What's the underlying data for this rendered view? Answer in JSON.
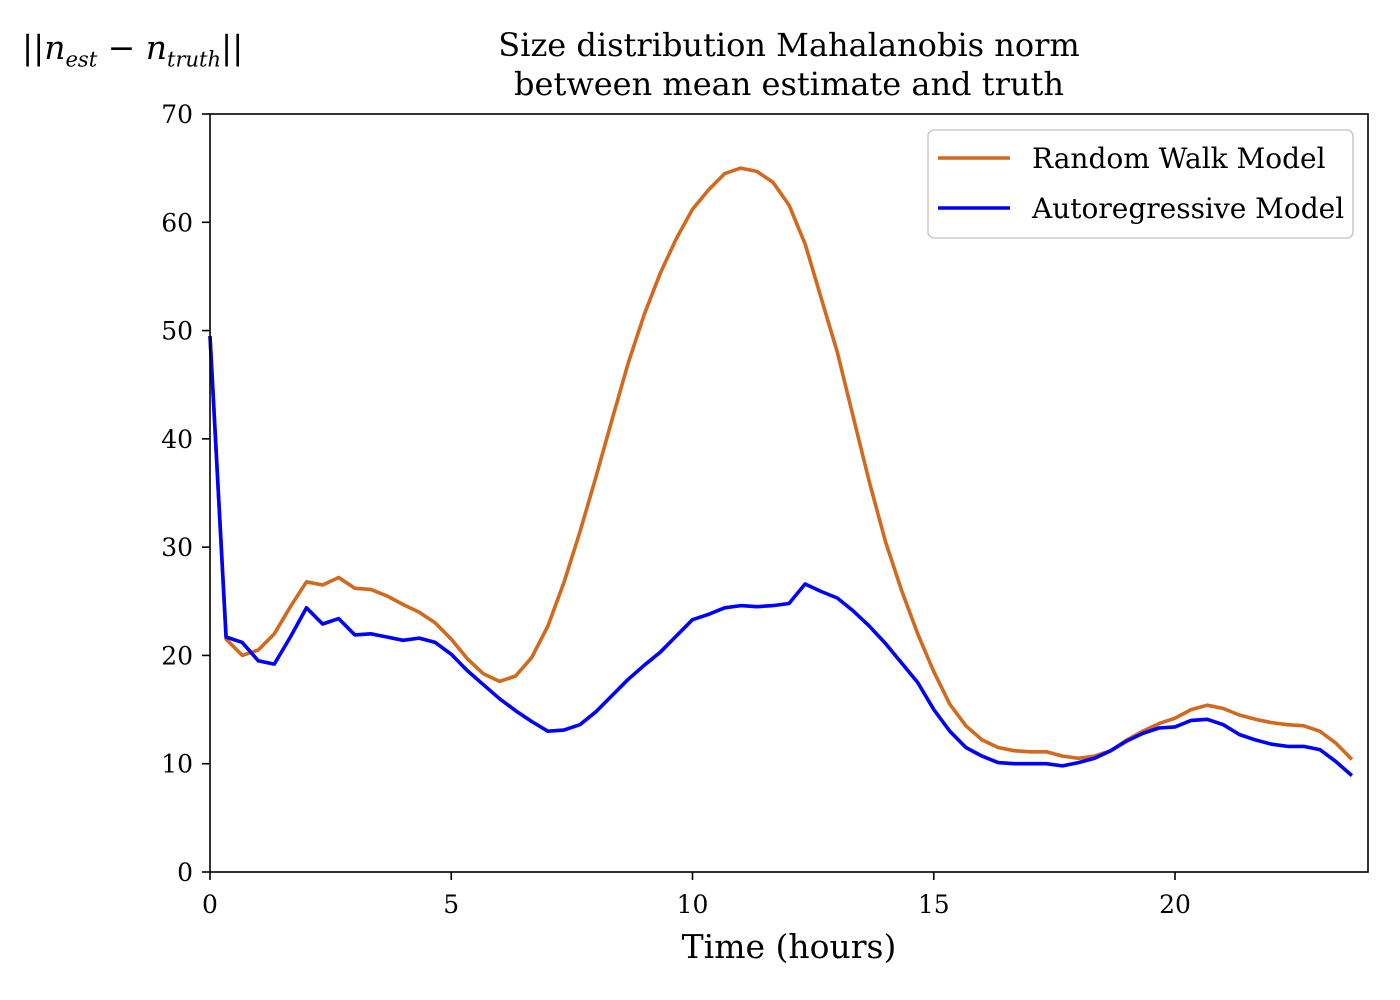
{
  "chart_data": {
    "type": "line",
    "title_line1": "Size distribution Mahalanobis norm",
    "title_line2": "between mean estimate and truth",
    "xlabel": "Time (hours)",
    "ylabel": {
      "prefix": "||n",
      "sub1": "est",
      "middle": " − n",
      "sub2": "truth",
      "suffix": "||"
    },
    "xlim": [
      0,
      24
    ],
    "ylim": [
      0,
      70
    ],
    "xticks": [
      0,
      5,
      10,
      15,
      20
    ],
    "yticks": [
      0,
      10,
      20,
      30,
      40,
      50,
      60,
      70
    ],
    "legend_position": "top-right",
    "x": [
      0,
      0.333,
      0.667,
      1.0,
      1.333,
      1.667,
      2.0,
      2.333,
      2.667,
      3.0,
      3.333,
      3.667,
      4.0,
      4.333,
      4.667,
      5.0,
      5.333,
      5.667,
      6.0,
      6.333,
      6.667,
      7.0,
      7.333,
      7.667,
      8.0,
      8.333,
      8.667,
      9.0,
      9.333,
      9.667,
      10.0,
      10.333,
      10.667,
      11.0,
      11.333,
      11.667,
      12.0,
      12.333,
      12.667,
      13.0,
      13.333,
      13.667,
      14.0,
      14.333,
      14.667,
      15.0,
      15.333,
      15.667,
      16.0,
      16.333,
      16.667,
      17.0,
      17.333,
      17.667,
      18.0,
      18.333,
      18.667,
      19.0,
      19.333,
      19.667,
      20.0,
      20.333,
      20.667,
      21.0,
      21.333,
      21.667,
      22.0,
      22.333,
      22.667,
      23.0,
      23.333,
      23.667
    ],
    "series": [
      {
        "name": "Random Walk Model",
        "color": "#d2691e",
        "values": [
          49.5,
          21.5,
          20.0,
          20.5,
          22.0,
          24.5,
          26.8,
          26.5,
          27.2,
          26.2,
          26.1,
          25.5,
          24.7,
          24.0,
          23.0,
          21.5,
          19.7,
          18.3,
          17.6,
          18.1,
          19.8,
          22.7,
          26.7,
          31.4,
          36.5,
          41.8,
          47.0,
          51.5,
          55.3,
          58.5,
          61.2,
          63.0,
          64.5,
          65.0,
          64.7,
          63.7,
          61.6,
          58.0,
          53.0,
          48.0,
          42.0,
          36.0,
          30.5,
          26.0,
          22.0,
          18.5,
          15.5,
          13.5,
          12.2,
          11.5,
          11.2,
          11.1,
          11.1,
          10.7,
          10.5,
          10.7,
          11.2,
          12.2,
          13.0,
          13.7,
          14.2,
          15.0,
          15.4,
          15.1,
          14.5,
          14.1,
          13.8,
          13.6,
          13.5,
          13.0,
          11.9,
          10.4
        ]
      },
      {
        "name": "Autoregressive Model",
        "color": "#0000ff",
        "values": [
          49.5,
          21.7,
          21.2,
          19.5,
          19.2,
          21.7,
          24.4,
          22.9,
          23.4,
          21.9,
          22.0,
          21.7,
          21.4,
          21.6,
          21.2,
          20.1,
          18.6,
          17.3,
          16.0,
          14.9,
          13.9,
          13.0,
          13.1,
          13.6,
          14.8,
          16.3,
          17.8,
          19.1,
          20.3,
          21.8,
          23.3,
          23.8,
          24.4,
          24.6,
          24.5,
          24.6,
          24.8,
          26.6,
          25.9,
          25.3,
          24.1,
          22.7,
          21.1,
          19.3,
          17.5,
          15.0,
          13.0,
          11.5,
          10.7,
          10.1,
          10.0,
          10.0,
          10.0,
          9.8,
          10.1,
          10.5,
          11.2,
          12.1,
          12.8,
          13.3,
          13.4,
          14.0,
          14.1,
          13.6,
          12.7,
          12.2,
          11.8,
          11.6,
          11.6,
          11.3,
          10.2,
          8.9
        ]
      }
    ]
  }
}
